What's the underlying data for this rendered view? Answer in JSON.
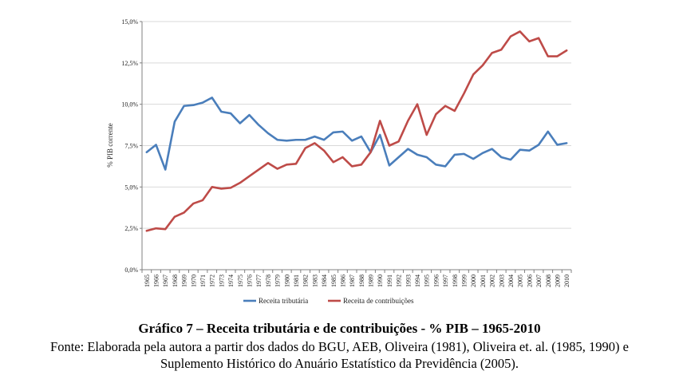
{
  "chart_data": {
    "type": "line",
    "ylabel": "% PIB corrente",
    "xlabel": "",
    "ylim": [
      0,
      15
    ],
    "yticks": [
      0,
      2.5,
      5,
      7.5,
      10,
      12.5,
      15
    ],
    "ytick_labels": [
      "0,0%",
      "2,5%",
      "5,0%",
      "7,5%",
      "10,0%",
      "12,5%",
      "15,0%"
    ],
    "grid": "horizontal",
    "legend_position": "bottom",
    "categories": [
      "1965",
      "1966",
      "1967",
      "1968",
      "1969",
      "1970",
      "1971",
      "1972",
      "1973",
      "1974",
      "1975",
      "1976",
      "1977",
      "1978",
      "1979",
      "1980",
      "1981",
      "1982",
      "1983",
      "1984",
      "1985",
      "1986",
      "1987",
      "1988",
      "1989",
      "1990",
      "1991",
      "1992",
      "1993",
      "1994",
      "1995",
      "1996",
      "1997",
      "1998",
      "1999",
      "2000",
      "2001",
      "2002",
      "2003",
      "2004",
      "2005",
      "2006",
      "2007",
      "2008",
      "2009",
      "2010"
    ],
    "series": [
      {
        "name": "Receita tributária",
        "color": "#4a7ebb",
        "values": [
          7.1,
          7.55,
          6.05,
          8.95,
          9.9,
          9.95,
          10.1,
          10.4,
          9.55,
          9.45,
          8.85,
          9.35,
          8.75,
          8.25,
          7.85,
          7.8,
          7.85,
          7.85,
          8.05,
          7.85,
          8.3,
          8.35,
          7.8,
          8.05,
          7.1,
          8.15,
          6.3,
          6.8,
          7.3,
          6.95,
          6.8,
          6.35,
          6.25,
          6.95,
          7.0,
          6.7,
          7.05,
          7.3,
          6.8,
          6.65,
          7.25,
          7.2,
          7.55,
          8.35,
          7.55,
          7.65
        ]
      },
      {
        "name": "Receita de contribuições",
        "color": "#be4b48",
        "values": [
          2.35,
          2.5,
          2.45,
          3.2,
          3.45,
          4.0,
          4.2,
          5.0,
          4.9,
          4.95,
          5.25,
          5.65,
          6.05,
          6.45,
          6.1,
          6.35,
          6.4,
          7.35,
          7.65,
          7.2,
          6.5,
          6.8,
          6.25,
          6.35,
          7.1,
          9.0,
          7.5,
          7.75,
          9.0,
          10.0,
          8.15,
          9.4,
          9.9,
          9.6,
          10.65,
          11.8,
          12.35,
          13.1,
          13.3,
          14.1,
          14.4,
          13.8,
          14.0,
          12.9,
          12.9,
          13.25
        ]
      }
    ]
  },
  "caption": {
    "title": "Gráfico 7 – Receita tributária e de contribuições - % PIB – 1965-2010",
    "source_line1": "Fonte: Elaborada pela autora a partir dos dados do BGU, AEB, Oliveira (1981), Oliveira et. al. (1985, 1990) e",
    "source_line2": "Suplemento Histórico do Anuário Estatístico da Previdência (2005)."
  }
}
